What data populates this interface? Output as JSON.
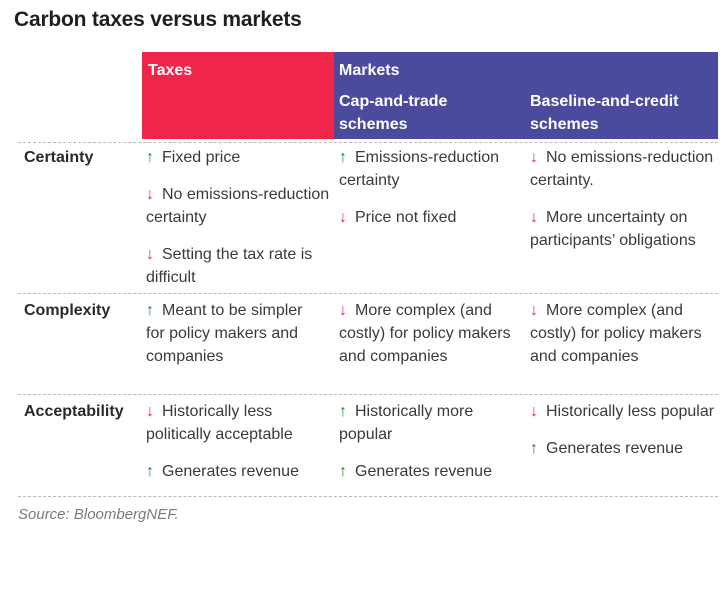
{
  "title": "Carbon taxes versus markets",
  "header": {
    "taxes": "Taxes",
    "markets": "Markets",
    "cap_and_trade": "Cap-and-trade schemes",
    "baseline_and_credit": "Baseline-and-credit schemes"
  },
  "colors": {
    "taxes_bg": "#f0254a",
    "markets_bg": "#4b4b9d",
    "up_arrow": "#1a8a2a",
    "down_arrow": "#e8264c"
  },
  "icons": {
    "up": "↑",
    "down": "↓"
  },
  "rows": {
    "certainty": {
      "label": "Certainty",
      "taxes": [
        {
          "dir": "up",
          "text": "Fixed price"
        },
        {
          "dir": "down",
          "text": "No emissions-reduction certainty"
        },
        {
          "dir": "down",
          "text": "Setting the tax rate is difficult"
        }
      ],
      "cap": [
        {
          "dir": "up",
          "text": "Emissions-reduction certainty"
        },
        {
          "dir": "down",
          "text": "Price not fixed"
        }
      ],
      "base": [
        {
          "dir": "down",
          "text": "No emissions-reduction certainty."
        },
        {
          "dir": "down",
          "text": "More uncertainty on participants’ obligations"
        }
      ]
    },
    "complexity": {
      "label": "Complexity",
      "taxes": [
        {
          "dir": "up",
          "text": "Meant to be simpler for policy makers and companies"
        }
      ],
      "cap": [
        {
          "dir": "down",
          "text": "More complex (and costly) for policy makers and companies"
        }
      ],
      "base": [
        {
          "dir": "down",
          "text": "More complex (and costly) for policy makers and companies"
        }
      ]
    },
    "acceptability": {
      "label": "Acceptability",
      "taxes": [
        {
          "dir": "down",
          "text": "Historically less politically acceptable"
        },
        {
          "dir": "up",
          "text": "Generates revenue"
        }
      ],
      "cap": [
        {
          "dir": "up",
          "text": "Historically more popular"
        },
        {
          "dir": "up",
          "text": "Generates revenue"
        }
      ],
      "base": [
        {
          "dir": "down",
          "text": "Historically less popular"
        },
        {
          "dir": "up",
          "text": "Generates revenue"
        }
      ]
    }
  },
  "source": "Source: BloombergNEF."
}
